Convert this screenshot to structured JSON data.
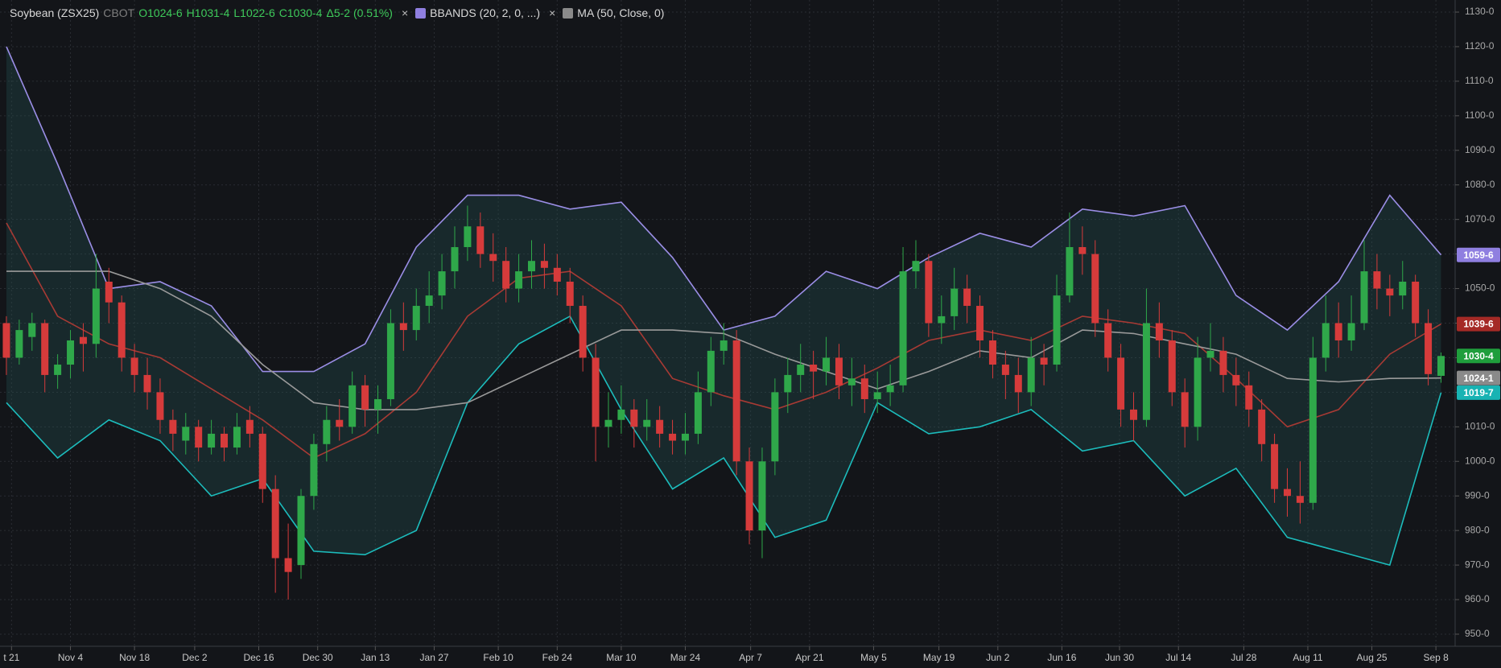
{
  "chart_data": {
    "type": "candlestick",
    "title": "Soybean (ZSX25)",
    "exchange": "CBOT",
    "ohlc_text": [
      "O1024-6",
      "H1031-4",
      "L1022-6",
      "C1030-4"
    ],
    "change_text": "Δ5-2 (0.51%)",
    "indicators": [
      {
        "label": "BBANDS (20, 2, 0, ...)",
        "color": "#8f7fe0"
      },
      {
        "label": "MA (50, Close, 0)",
        "color": "#8a8a8a"
      }
    ],
    "xlim": [
      -0.5,
      113.1
    ],
    "xticks": [
      {
        "value": 0.4,
        "label": "t 21"
      },
      {
        "value": 5,
        "label": "Nov 4"
      },
      {
        "value": 10,
        "label": "Nov 18"
      },
      {
        "value": 14.7,
        "label": "Dec 2"
      },
      {
        "value": 19.7,
        "label": "Dec 16"
      },
      {
        "value": 24.3,
        "label": "Dec 30"
      },
      {
        "value": 28.8,
        "label": "Jan 13"
      },
      {
        "value": 33.4,
        "label": "Jan 27"
      },
      {
        "value": 38.4,
        "label": "Feb 10"
      },
      {
        "value": 43,
        "label": "Feb 24"
      },
      {
        "value": 48,
        "label": "Mar 10"
      },
      {
        "value": 53,
        "label": "Mar 24"
      },
      {
        "value": 58.1,
        "label": "Apr 7"
      },
      {
        "value": 62.7,
        "label": "Apr 21"
      },
      {
        "value": 67.7,
        "label": "May 5"
      },
      {
        "value": 72.8,
        "label": "May 19"
      },
      {
        "value": 77.4,
        "label": "Jun 2"
      },
      {
        "value": 82.4,
        "label": "Jun 16"
      },
      {
        "value": 86.9,
        "label": "Jun 30"
      },
      {
        "value": 91.5,
        "label": "Jul 14"
      },
      {
        "value": 96.6,
        "label": "Jul 28"
      },
      {
        "value": 101.6,
        "label": "Aug 11"
      },
      {
        "value": 106.6,
        "label": "Aug 25"
      },
      {
        "value": 111.6,
        "label": "Sep 8"
      }
    ],
    "ylim": [
      946.5,
      1133.5
    ],
    "yticks": [
      {
        "value": 950,
        "label": "950-0"
      },
      {
        "value": 960,
        "label": "960-0"
      },
      {
        "value": 970,
        "label": "970-0"
      },
      {
        "value": 980,
        "label": "980-0"
      },
      {
        "value": 990,
        "label": "990-0"
      },
      {
        "value": 1000,
        "label": "1000-0"
      },
      {
        "value": 1010,
        "label": "1010-0"
      },
      {
        "value": 1020,
        "label": "1020-0"
      },
      {
        "value": 1030,
        "label": "1030-0"
      },
      {
        "value": 1040,
        "label": "1040-0"
      },
      {
        "value": 1050,
        "label": "1050-0"
      },
      {
        "value": 1060,
        "label": "1060-0"
      },
      {
        "value": 1070,
        "label": "1070-0"
      },
      {
        "value": 1080,
        "label": "1080-0"
      },
      {
        "value": 1090,
        "label": "1090-0"
      },
      {
        "value": 1100,
        "label": "1100-0"
      },
      {
        "value": 1110,
        "label": "1110-0"
      },
      {
        "value": 1120,
        "label": "1120-0"
      },
      {
        "value": 1130,
        "label": "1130-0"
      }
    ],
    "grid": true,
    "candles": {
      "up_color": "#2fa84a",
      "down_color": "#d63b3b",
      "open": [
        1040,
        1030,
        1036,
        1040,
        1025,
        1028,
        1036,
        1034,
        1052,
        1046,
        1030,
        1025,
        1020,
        1012,
        1006,
        1010,
        1004,
        1008,
        1004,
        1012,
        1008,
        992,
        972,
        970,
        990,
        1005,
        1012,
        1010,
        1022,
        1015,
        1018,
        1040,
        1038,
        1045,
        1048,
        1055,
        1062,
        1068,
        1060,
        1058,
        1050,
        1055,
        1058,
        1056,
        1052,
        1045,
        1030,
        1010,
        1012,
        1015,
        1010,
        1012,
        1008,
        1006,
        1008,
        1020,
        1032,
        1035,
        1000,
        980,
        1000,
        1020,
        1025,
        1028,
        1026,
        1030,
        1022,
        1024,
        1018,
        1020,
        1022,
        1055,
        1058,
        1040,
        1042,
        1050,
        1045,
        1035,
        1028,
        1025,
        1020,
        1030,
        1028,
        1048,
        1062,
        1060,
        1040,
        1030,
        1015,
        1012,
        1040,
        1035,
        1020,
        1010,
        1030,
        1032,
        1025,
        1022,
        1015,
        1005,
        992,
        990,
        988,
        1030,
        1040,
        1035,
        1040,
        1055,
        1050,
        1048,
        1052,
        1040,
        1024.75
      ],
      "high": [
        1042,
        1041,
        1043,
        1041,
        1031,
        1038,
        1040,
        1060,
        1056,
        1048,
        1034,
        1030,
        1024,
        1015,
        1014,
        1012,
        1012,
        1010,
        1014,
        1016,
        1010,
        996,
        982,
        992,
        1008,
        1016,
        1018,
        1026,
        1025,
        1022,
        1044,
        1046,
        1050,
        1055,
        1060,
        1068,
        1074,
        1072,
        1066,
        1062,
        1060,
        1064,
        1063,
        1060,
        1056,
        1048,
        1034,
        1020,
        1022,
        1018,
        1018,
        1016,
        1012,
        1014,
        1026,
        1036,
        1040,
        1038,
        1004,
        1004,
        1024,
        1030,
        1034,
        1032,
        1036,
        1034,
        1030,
        1028,
        1026,
        1028,
        1062,
        1064,
        1060,
        1048,
        1056,
        1054,
        1048,
        1038,
        1032,
        1030,
        1036,
        1034,
        1054,
        1072,
        1068,
        1064,
        1044,
        1034,
        1020,
        1050,
        1046,
        1038,
        1024,
        1036,
        1040,
        1036,
        1030,
        1026,
        1018,
        1008,
        998,
        1000,
        1036,
        1048,
        1046,
        1048,
        1064,
        1060,
        1054,
        1058,
        1054,
        1044,
        1031.5
      ],
      "low": [
        1025,
        1028,
        1032,
        1020,
        1021,
        1024,
        1026,
        1030,
        1040,
        1026,
        1020,
        1015,
        1008,
        1003,
        1002,
        1000,
        1002,
        1000,
        1002,
        1004,
        988,
        962,
        960,
        966,
        986,
        1000,
        1006,
        1008,
        1010,
        1008,
        1016,
        1032,
        1035,
        1040,
        1044,
        1050,
        1058,
        1056,
        1052,
        1046,
        1046,
        1050,
        1050,
        1048,
        1040,
        1026,
        1000,
        1004,
        1008,
        1004,
        1006,
        1004,
        1002,
        1002,
        1005,
        1016,
        1028,
        996,
        976,
        972,
        996,
        1014,
        1020,
        1018,
        1022,
        1018,
        1016,
        1014,
        1014,
        1016,
        1020,
        1050,
        1036,
        1034,
        1038,
        1040,
        1030,
        1024,
        1018,
        1014,
        1016,
        1022,
        1026,
        1046,
        1054,
        1036,
        1026,
        1010,
        1006,
        1010,
        1030,
        1016,
        1004,
        1006,
        1026,
        1020,
        1016,
        1010,
        1000,
        988,
        984,
        982,
        986,
        1026,
        1030,
        1032,
        1038,
        1044,
        1042,
        1044,
        1036,
        1022,
        1022.75
      ],
      "close": [
        1030,
        1038,
        1040,
        1025,
        1028,
        1035,
        1034,
        1050,
        1046,
        1030,
        1025,
        1020,
        1012,
        1008,
        1010,
        1004,
        1008,
        1004,
        1010,
        1008,
        992,
        972,
        968,
        990,
        1005,
        1012,
        1010,
        1022,
        1015,
        1018,
        1040,
        1038,
        1045,
        1048,
        1055,
        1062,
        1068,
        1060,
        1058,
        1050,
        1055,
        1058,
        1056,
        1052,
        1045,
        1030,
        1010,
        1012,
        1015,
        1010,
        1012,
        1008,
        1006,
        1008,
        1020,
        1032,
        1035,
        1000,
        980,
        1000,
        1020,
        1025,
        1028,
        1026,
        1030,
        1022,
        1024,
        1018,
        1020,
        1022,
        1055,
        1058,
        1040,
        1042,
        1050,
        1045,
        1035,
        1028,
        1025,
        1020,
        1030,
        1028,
        1048,
        1062,
        1060,
        1040,
        1030,
        1015,
        1012,
        1040,
        1035,
        1020,
        1010,
        1030,
        1032,
        1025,
        1022,
        1015,
        1005,
        992,
        990,
        988,
        1030,
        1040,
        1035,
        1040,
        1055,
        1050,
        1048,
        1052,
        1040,
        1025.25,
        1030.5
      ]
    },
    "band_fill": "rgba(38,92,92,0.28)",
    "line_x": [
      0,
      4,
      8,
      12,
      16,
      20,
      24,
      28,
      32,
      36,
      40,
      44,
      48,
      52,
      56,
      60,
      64,
      68,
      72,
      76,
      80,
      84,
      88,
      92,
      96,
      100,
      104,
      108,
      112
    ],
    "series": [
      {
        "color": "#9b8ee6",
        "values": [
          1120,
          1086,
          1050,
          1052,
          1045,
          1026,
          1026,
          1034,
          1062,
          1077,
          1077,
          1073,
          1075,
          1059,
          1038,
          1042,
          1055,
          1050,
          1059,
          1066,
          1062,
          1073,
          1071,
          1074,
          1048,
          1038,
          1052,
          1077,
          1059.75
        ]
      },
      {
        "color": "#1cbcbc",
        "values": [
          1017,
          1001,
          1012,
          1006,
          990,
          995,
          974,
          973,
          980,
          1017,
          1034,
          1042,
          1015,
          992,
          1001,
          978,
          983,
          1017,
          1008,
          1010,
          1015,
          1003,
          1006,
          990,
          998,
          978,
          974,
          970,
          1019.875
        ]
      },
      {
        "color": "#a83a34",
        "values": [
          1069,
          1042,
          1034,
          1030,
          1021,
          1012,
          1001,
          1008,
          1020,
          1042,
          1053,
          1055,
          1045,
          1024,
          1019,
          1015,
          1020,
          1027,
          1035,
          1038,
          1035,
          1042,
          1040,
          1037,
          1024,
          1010,
          1015,
          1031,
          1039.75
        ]
      },
      {
        "color": "#9a9a9a",
        "values": [
          1055,
          1055,
          1055,
          1050,
          1042,
          1028,
          1017,
          1015,
          1015,
          1017,
          1024,
          1031,
          1038,
          1038,
          1037,
          1031,
          1026,
          1021,
          1026,
          1032,
          1030,
          1038,
          1037,
          1034,
          1031,
          1024,
          1023,
          1024,
          1024.125
        ]
      }
    ],
    "price_tags": [
      {
        "value": 1059.75,
        "label": "1059-6",
        "color": "#8f7fe0"
      },
      {
        "value": 1039.75,
        "label": "1039-6",
        "color": "#a52a26"
      },
      {
        "value": 1030.5,
        "label": "1030-4",
        "color": "#1f9e3c"
      },
      {
        "value": 1024.125,
        "label": "1024-1",
        "color": "#8a8a8a"
      },
      {
        "value": 1019.875,
        "label": "1019-7",
        "color": "#18b3b3"
      }
    ]
  }
}
